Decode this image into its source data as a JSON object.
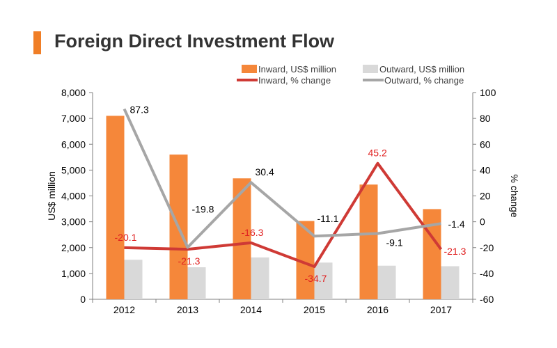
{
  "colors": {
    "accent": "#f07e26",
    "inward_bar": "#f5873a",
    "outward_bar": "#d9d9d9",
    "inward_line": "#cf3a35",
    "outward_line": "#a6a6a6",
    "inward_label": "#e02020",
    "text": "#000000",
    "axis": "#7f7f7f"
  },
  "chart_data": {
    "type": "bar+line",
    "title": "Foreign Direct Investment Flow",
    "categories": [
      "2012",
      "2013",
      "2014",
      "2015",
      "2016",
      "2017"
    ],
    "bars": [
      {
        "name": "Inward, US$ million",
        "values": [
          7100,
          5600,
          4680,
          3030,
          4440,
          3490
        ]
      },
      {
        "name": "Outward, US$ million",
        "values": [
          1530,
          1240,
          1620,
          1420,
          1300,
          1280
        ]
      }
    ],
    "lines": [
      {
        "name": "Inward, % change",
        "values": [
          -20.1,
          -21.3,
          -16.3,
          -34.7,
          45.2,
          -21.3
        ],
        "labels": [
          "-20.1",
          "-21.3",
          "-16.3",
          "-34.7",
          "45.2",
          "-21.3"
        ]
      },
      {
        "name": "Outward, % change",
        "values": [
          87.3,
          -19.8,
          30.4,
          -11.1,
          -9.1,
          -1.4
        ],
        "labels": [
          "87.3",
          "-19.8",
          "30.4",
          "-11.1",
          "-9.1",
          "-1.4"
        ]
      }
    ],
    "ylabel": "US$ million",
    "y2label": "% change",
    "ylim": [
      0,
      8000
    ],
    "yticks": [
      0,
      1000,
      2000,
      3000,
      4000,
      5000,
      6000,
      7000,
      8000
    ],
    "ytick_labels": [
      "0",
      "1,000",
      "2,000",
      "3,000",
      "4,000",
      "5,000",
      "6,000",
      "7,000",
      "8,000"
    ],
    "y2lim": [
      -60,
      100
    ],
    "y2ticks": [
      -60,
      -40,
      -20,
      0,
      20,
      40,
      60,
      80,
      100
    ],
    "y2tick_labels": [
      "-60",
      "-40",
      "-20",
      "0",
      "20",
      "40",
      "60",
      "80",
      "100"
    ],
    "legend": "top"
  }
}
